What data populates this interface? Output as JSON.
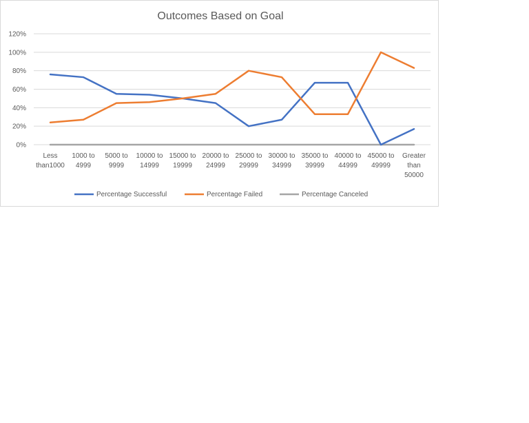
{
  "chart_data": {
    "type": "line",
    "title": "Outcomes Based on Goal",
    "xlabel": "",
    "ylabel": "",
    "categories": [
      "Less than1000",
      "1000 to 4999",
      "5000 to 9999",
      "10000 to 14999",
      "15000 to 19999",
      "20000 to 24999",
      "25000 to 29999",
      "30000 to 34999",
      "35000 to 39999",
      "40000 to 44999",
      "45000 to 49999",
      "Greater than 50000"
    ],
    "category_lines": [
      [
        "Less",
        "than1000"
      ],
      [
        "1000 to",
        "4999"
      ],
      [
        "5000 to",
        "9999"
      ],
      [
        "10000 to",
        "14999"
      ],
      [
        "15000 to",
        "19999"
      ],
      [
        "20000 to",
        "24999"
      ],
      [
        "25000 to",
        "29999"
      ],
      [
        "30000 to",
        "34999"
      ],
      [
        "35000 to",
        "39999"
      ],
      [
        "40000 to",
        "44999"
      ],
      [
        "45000 to",
        "49999"
      ],
      [
        "Greater",
        "than",
        "50000"
      ]
    ],
    "ylim": [
      0,
      1.2
    ],
    "y_ticks": [
      0,
      0.2,
      0.4,
      0.6,
      0.8,
      1.0,
      1.2
    ],
    "y_tick_labels": [
      "0%",
      "20%",
      "40%",
      "60%",
      "80%",
      "100%",
      "120%"
    ],
    "grid": true,
    "legend_position": "bottom",
    "series": [
      {
        "name": "Percentage Successful",
        "color": "#4472c4",
        "values": [
          0.76,
          0.73,
          0.55,
          0.54,
          0.5,
          0.45,
          0.2,
          0.27,
          0.67,
          0.67,
          0.0,
          0.17
        ]
      },
      {
        "name": "Percentage Failed",
        "color": "#ed7d31",
        "values": [
          0.24,
          0.27,
          0.45,
          0.46,
          0.5,
          0.55,
          0.8,
          0.73,
          0.33,
          0.33,
          1.0,
          0.83
        ]
      },
      {
        "name": "Percentage Canceled",
        "color": "#a5a5a5",
        "values": [
          0,
          0,
          0,
          0,
          0,
          0,
          0,
          0,
          0,
          0,
          0,
          0
        ]
      }
    ]
  }
}
